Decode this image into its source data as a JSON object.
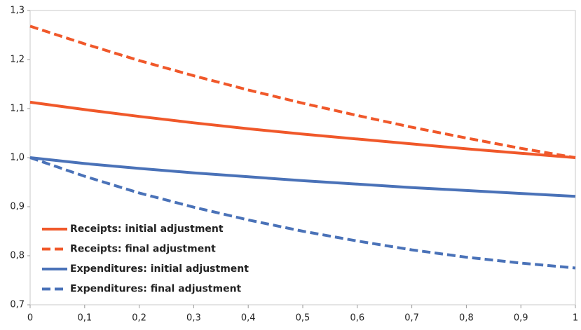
{
  "chart_data": {
    "type": "line",
    "x": [
      0,
      0.1,
      0.2,
      0.3,
      0.4,
      0.5,
      0.6,
      0.7,
      0.8,
      0.9,
      1
    ],
    "series": [
      {
        "name": "Receipts: initial adjustment",
        "color": "#f0582a",
        "dashed": false,
        "values": [
          1.113,
          1.098,
          1.084,
          1.071,
          1.059,
          1.048,
          1.038,
          1.028,
          1.018,
          1.009,
          1.0
        ]
      },
      {
        "name": "Receipts: final adjustment",
        "color": "#f0582a",
        "dashed": true,
        "values": [
          1.268,
          1.232,
          1.198,
          1.167,
          1.138,
          1.111,
          1.086,
          1.062,
          1.04,
          1.019,
          1.0
        ]
      },
      {
        "name": "Expenditures: initial adjustment",
        "color": "#4a72b8",
        "dashed": false,
        "values": [
          1.0,
          0.988,
          0.978,
          0.969,
          0.961,
          0.953,
          0.946,
          0.939,
          0.933,
          0.927,
          0.921
        ]
      },
      {
        "name": "Expenditures: final adjustment",
        "color": "#4a72b8",
        "dashed": true,
        "values": [
          1.0,
          0.962,
          0.928,
          0.899,
          0.873,
          0.85,
          0.83,
          0.812,
          0.797,
          0.785,
          0.775
        ]
      }
    ],
    "xlim": [
      0,
      1
    ],
    "xticks": [
      0,
      {
        "value": 0.1,
        "label": "0,1"
      },
      {
        "value": 0.2,
        "label": "0,2"
      },
      {
        "value": 0.3,
        "label": "0,3"
      },
      {
        "value": 0.4,
        "label": "0,4"
      },
      {
        "value": 0.5,
        "label": "0,5"
      },
      {
        "value": 0.6,
        "label": "0,6"
      },
      {
        "value": 0.7,
        "label": "0,7"
      },
      {
        "value": 0.8,
        "label": "0,8"
      },
      {
        "value": 0.9,
        "label": "0,9"
      },
      1
    ],
    "ylim": [
      0.7,
      1.3
    ],
    "yticks": [
      {
        "value": 0.7,
        "label": "0,7"
      },
      {
        "value": 0.8,
        "label": "0,8"
      },
      {
        "value": 0.9,
        "label": "0,9"
      },
      {
        "value": 1.0,
        "label": "1,0"
      },
      {
        "value": 1.1,
        "label": "1,1"
      },
      {
        "value": 1.2,
        "label": "1,2"
      },
      {
        "value": 1.3,
        "label": "1,3"
      }
    ],
    "legend": "lower left",
    "grid": false
  }
}
